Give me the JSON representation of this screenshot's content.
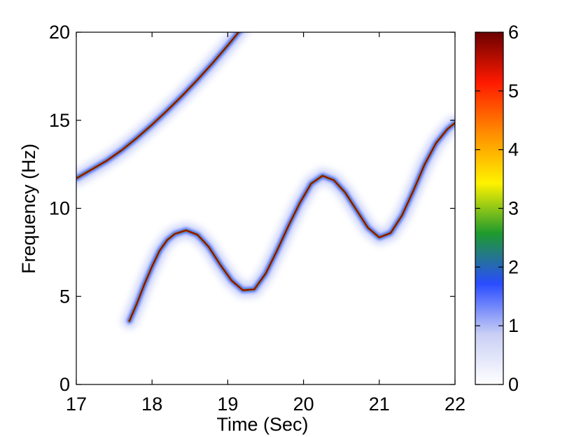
{
  "chart_data": {
    "type": "heatmap",
    "title": "",
    "xlabel": "Time (Sec)",
    "ylabel": "Frequency (Hz)",
    "xlim": [
      17,
      22
    ],
    "ylim": [
      0,
      20
    ],
    "xticks": [
      "17",
      "18",
      "19",
      "20",
      "21",
      "22"
    ],
    "yticks": [
      "0",
      "5",
      "10",
      "15",
      "20"
    ],
    "colorbar": {
      "range": [
        0,
        6
      ],
      "ticks": [
        "0",
        "1",
        "2",
        "3",
        "4",
        "5",
        "6"
      ],
      "colormap": [
        "#ffffff",
        "#c9cff5",
        "#2a4cff",
        "#1e9a2e",
        "#fff200",
        "#ff8c00",
        "#ff1a00",
        "#6b0000"
      ]
    },
    "series": [
      {
        "x": [
          17.0,
          17.2,
          17.4,
          17.6,
          17.8,
          18.0,
          18.2,
          18.4,
          18.6,
          18.8,
          19.0,
          19.2,
          19.3
        ],
        "y": [
          11.7,
          12.2,
          12.7,
          13.3,
          14.0,
          14.75,
          15.55,
          16.4,
          17.3,
          18.25,
          19.25,
          20.3,
          20.85
        ]
      },
      {
        "x": [
          17.7,
          17.8,
          17.9,
          18.0,
          18.1,
          18.2,
          18.3,
          18.45,
          18.6,
          18.75,
          18.9,
          19.05,
          19.2,
          19.35,
          19.5,
          19.65,
          19.8,
          19.95,
          20.1,
          20.25,
          20.4,
          20.55,
          20.7,
          20.85,
          21.0,
          21.15,
          21.3,
          21.45,
          21.6,
          21.75,
          21.9,
          22.0
        ],
        "y": [
          3.6,
          4.6,
          5.7,
          6.7,
          7.6,
          8.2,
          8.55,
          8.75,
          8.5,
          7.8,
          6.8,
          5.9,
          5.35,
          5.4,
          6.3,
          7.6,
          9.0,
          10.3,
          11.4,
          11.85,
          11.6,
          10.9,
          9.9,
          8.9,
          8.35,
          8.6,
          9.6,
          11.0,
          12.5,
          13.7,
          14.5,
          14.85
        ]
      }
    ],
    "annotations": []
  }
}
